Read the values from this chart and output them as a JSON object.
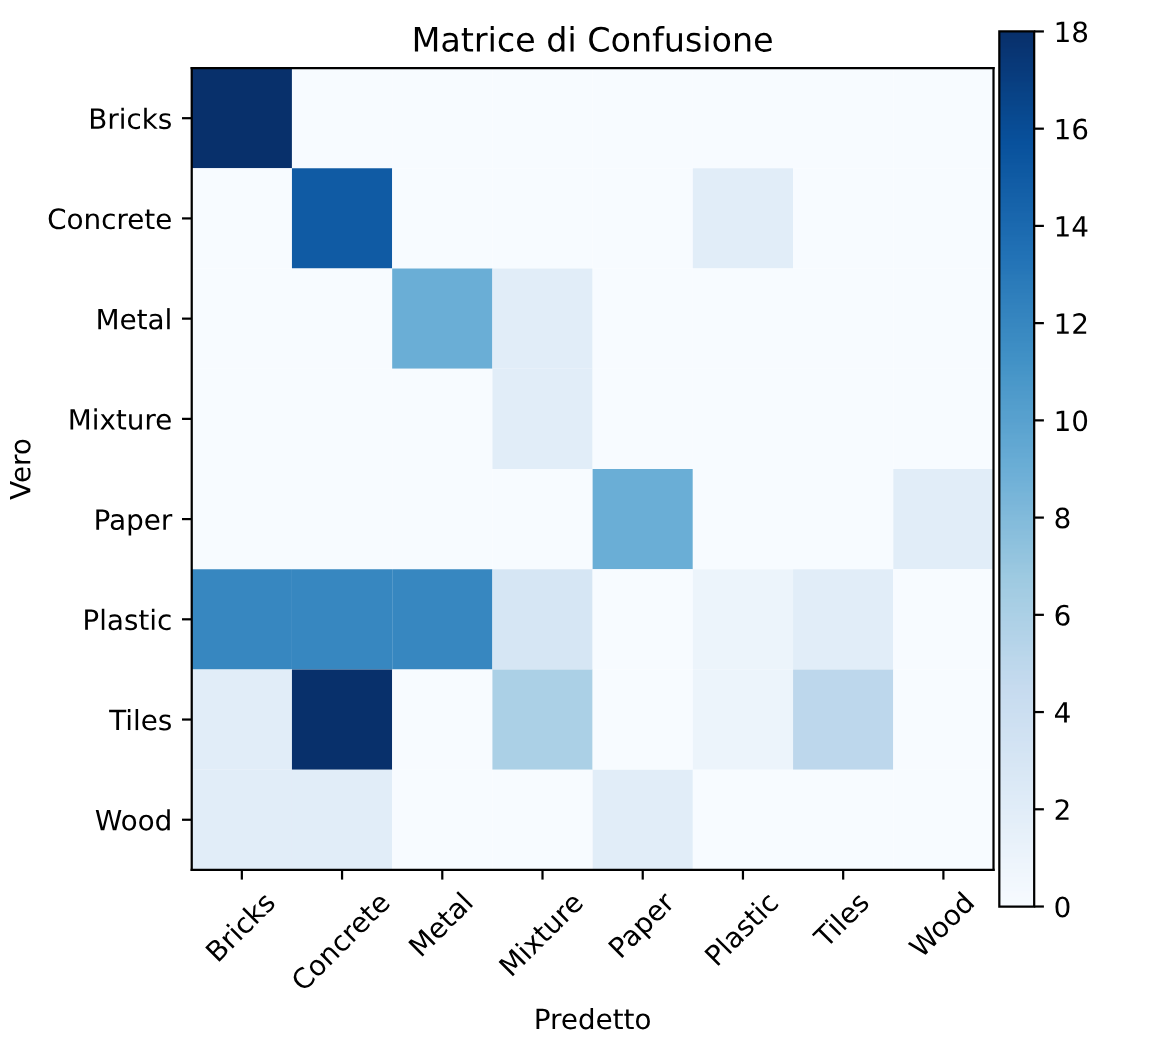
{
  "chart_data": {
    "type": "heatmap",
    "title": "Matrice di Confusione",
    "xlabel": "Predetto",
    "ylabel": "Vero",
    "categories": [
      "Bricks",
      "Concrete",
      "Metal",
      "Mixture",
      "Paper",
      "Plastic",
      "Tiles",
      "Wood"
    ],
    "y_categories": [
      "Bricks",
      "Concrete",
      "Metal",
      "Mixture",
      "Paper",
      "Plastic",
      "Tiles",
      "Wood"
    ],
    "cells": [
      [
        18,
        0,
        0,
        0,
        0,
        0,
        0,
        0
      ],
      [
        0,
        15,
        0,
        0,
        0,
        2,
        0,
        0
      ],
      [
        0,
        0,
        9,
        2,
        0,
        0,
        0,
        0
      ],
      [
        0,
        0,
        0,
        2,
        0,
        0,
        0,
        0
      ],
      [
        0,
        0,
        0,
        0,
        9,
        0,
        0,
        2
      ],
      [
        12,
        12,
        12,
        3,
        0,
        1,
        2,
        0
      ],
      [
        2,
        18,
        0,
        6,
        0,
        1,
        5,
        0
      ],
      [
        2,
        2,
        0,
        0,
        2,
        0,
        0,
        0
      ]
    ],
    "clim": [
      0,
      18
    ],
    "cticks": [
      0,
      2,
      4,
      6,
      8,
      10,
      12,
      14,
      16,
      18
    ],
    "grid": false
  }
}
